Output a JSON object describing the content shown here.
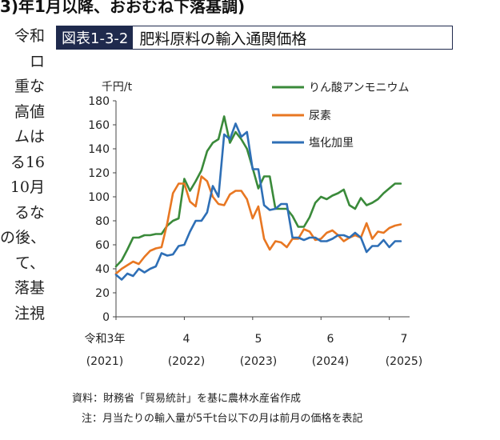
{
  "heading": "3)年1月以降、おおむね下落基調)",
  "side_text": [
    "令和",
    "ロ",
    "重な",
    "高値",
    "ムは",
    "る16",
    "10月",
    "るな",
    "の後、",
    "て、",
    "落基",
    "注視"
  ],
  "figure": {
    "number": "図表1-3-2",
    "title": "肥料原料の輸入通関価格"
  },
  "notes": {
    "source": "資料：財務省「貿易統計」を基に農林水産省作成",
    "note": "注：月当たりの輸入量が5千t台以下の月は前月の価格を表記"
  },
  "chart_data": {
    "type": "line",
    "ylabel": "千円/t",
    "ylim": [
      0,
      180
    ],
    "yticks": [
      0,
      20,
      40,
      60,
      80,
      100,
      120,
      140,
      160,
      180
    ],
    "xlim": [
      0,
      51
    ],
    "xticks": [
      {
        "month_index": 0,
        "label": "令和3年",
        "year": "(2021)"
      },
      {
        "month_index": 12,
        "label": "4",
        "year": "(2022)"
      },
      {
        "month_index": 24,
        "label": "5",
        "year": "(2023)"
      },
      {
        "month_index": 36,
        "label": "6",
        "year": "(2024)"
      },
      {
        "month_index": 48,
        "label": "7",
        "year": "(2025)"
      }
    ],
    "legend_position": "top-right",
    "series": [
      {
        "name": "りん酸アンモニウム",
        "color": "#3a8a3a",
        "values": [
          42,
          47,
          56,
          66,
          66,
          68,
          68,
          69,
          69,
          76,
          80,
          82,
          115,
          105,
          113,
          122,
          138,
          145,
          148,
          167,
          145,
          154,
          148,
          140,
          124,
          107,
          117,
          117,
          90,
          90,
          90,
          84,
          75,
          75,
          83,
          95,
          100,
          98,
          101,
          103,
          106,
          93,
          90,
          99,
          93,
          95,
          98,
          103,
          107,
          111,
          111
        ]
      },
      {
        "name": "尿素",
        "color": "#e87722",
        "values": [
          36,
          40,
          43,
          46,
          44,
          50,
          55,
          57,
          58,
          78,
          103,
          111,
          111,
          96,
          92,
          117,
          113,
          100,
          94,
          93,
          102,
          105,
          105,
          98,
          82,
          92,
          65,
          56,
          63,
          62,
          58,
          65,
          65,
          73,
          71,
          64,
          65,
          70,
          72,
          68,
          63,
          66,
          68,
          66,
          78,
          65,
          71,
          70,
          74,
          76,
          77
        ]
      },
      {
        "name": "塩化加里",
        "color": "#2e6fb6",
        "values": [
          35,
          31,
          36,
          34,
          40,
          37,
          40,
          42,
          53,
          51,
          52,
          59,
          60,
          71,
          80,
          80,
          87,
          109,
          100,
          152,
          148,
          161,
          150,
          154,
          123,
          123,
          93,
          89,
          90,
          94,
          94,
          66,
          66,
          64,
          66,
          66,
          63,
          63,
          65,
          68,
          68,
          66,
          70,
          66,
          54,
          59,
          59,
          64,
          58,
          63,
          63
        ]
      }
    ]
  }
}
